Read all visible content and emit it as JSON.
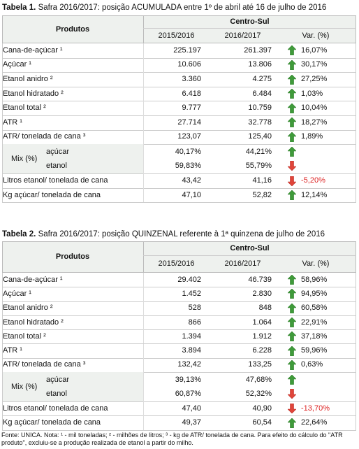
{
  "tables": [
    {
      "label": "Tabela 1.",
      "title": "Safra 2016/2017: posição ACUMULADA entre 1º de abril até 16 de julho de 2016",
      "header": {
        "product": "Produtos",
        "group": "Centro-Sul",
        "col1": "2015/2016",
        "col2": "2016/2017",
        "change": "Var. (%)"
      },
      "rows": [
        {
          "product": "Cana-de-açúcar ¹",
          "v1": "225.197",
          "v2": "261.397",
          "change": "16,07%",
          "trend": "up"
        },
        {
          "product": "Açúcar ¹",
          "v1": "10.606",
          "v2": "13.806",
          "change": "30,17%",
          "trend": "up"
        },
        {
          "product": "Etanol anidro ²",
          "v1": "3.360",
          "v2": "4.275",
          "change": "27,25%",
          "trend": "up"
        },
        {
          "product": "Etanol hidratado ²",
          "v1": "6.418",
          "v2": "6.484",
          "change": "1,03%",
          "trend": "up"
        },
        {
          "product": "Etanol total ²",
          "v1": "9.777",
          "v2": "10.759",
          "change": "10,04%",
          "trend": "up"
        },
        {
          "product": "ATR ¹",
          "v1": "27.714",
          "v2": "32.778",
          "change": "18,27%",
          "trend": "up"
        },
        {
          "product": "ATR/ tonelada de cana ³",
          "v1": "123,07",
          "v2": "125,40",
          "change": "1,89%",
          "trend": "up"
        },
        {
          "product": "Mix (%)",
          "sub": [
            {
              "name": "açúcar",
              "v1": "40,17%",
              "v2": "44,21%",
              "trend": "up"
            },
            {
              "name": "etanol",
              "v1": "59,83%",
              "v2": "55,79%",
              "trend": "down"
            }
          ]
        },
        {
          "product": "Litros etanol/ tonelada de cana",
          "v1": "43,42",
          "v2": "41,16",
          "change": "-5,20%",
          "trend": "down"
        },
        {
          "product": "Kg açúcar/ tonelada de cana",
          "v1": "47,10",
          "v2": "52,82",
          "change": "12,14%",
          "trend": "up"
        }
      ]
    },
    {
      "label": "Tabela 2.",
      "title": "Safra 2016/2017: posição QUINZENAL referente à 1ª quinzena de julho de 2016",
      "header": {
        "product": "Produtos",
        "group": "Centro-Sul",
        "col1": "2015/2016",
        "col2": "2016/2017",
        "change": "Var. (%)"
      },
      "rows": [
        {
          "product": "Cana-de-açúcar ¹",
          "v1": "29.402",
          "v2": "46.739",
          "change": "58,96%",
          "trend": "up"
        },
        {
          "product": "Açúcar ¹",
          "v1": "1.452",
          "v2": "2.830",
          "change": "94,95%",
          "trend": "up"
        },
        {
          "product": "Etanol anidro ²",
          "v1": "528",
          "v2": "848",
          "change": "60,58%",
          "trend": "up"
        },
        {
          "product": "Etanol hidratado ²",
          "v1": "866",
          "v2": "1.064",
          "change": "22,91%",
          "trend": "up"
        },
        {
          "product": "Etanol total ²",
          "v1": "1.394",
          "v2": "1.912",
          "change": "37,18%",
          "trend": "up"
        },
        {
          "product": "ATR ¹",
          "v1": "3.894",
          "v2": "6.228",
          "change": "59,96%",
          "trend": "up"
        },
        {
          "product": "ATR/ tonelada de cana ³",
          "v1": "132,42",
          "v2": "133,25",
          "change": "0,63%",
          "trend": "up"
        },
        {
          "product": "Mix (%)",
          "sub": [
            {
              "name": "açúcar",
              "v1": "39,13%",
              "v2": "47,68%",
              "trend": "up"
            },
            {
              "name": "etanol",
              "v1": "60,87%",
              "v2": "52,32%",
              "trend": "down"
            }
          ]
        },
        {
          "product": "Litros etanol/ tonelada de cana",
          "v1": "47,40",
          "v2": "40,90",
          "change": "-13,70%",
          "trend": "down"
        },
        {
          "product": "Kg açúcar/ tonelada de cana",
          "v1": "49,37",
          "v2": "60,54",
          "change": "22,64%",
          "trend": "up"
        }
      ]
    }
  ],
  "footnote": "Fonte: UNICA. Nota: ¹ - mil toneladas; ² - milhões de litros; ³ - kg de ATR/ tonelada de cana. Para efeito do cálculo do \"ATR produto\", excluiu-se a produção realizada de etanol a partir do milho."
}
